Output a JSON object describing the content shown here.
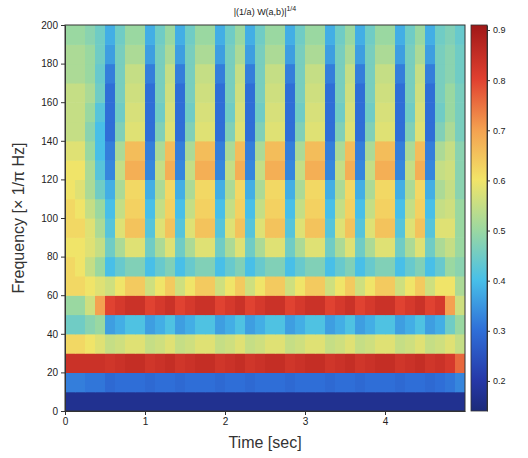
{
  "chart_data": {
    "type": "heatmap",
    "title": {
      "text": "|(1/a) W(a,b)|",
      "superscript": "1/4"
    },
    "x_label": "Time [sec]",
    "y_label": "Frequency [× 1/π Hz]",
    "xlim": [
      0,
      5
    ],
    "ylim": [
      0,
      200
    ],
    "xticks": [
      0,
      1,
      2,
      3,
      4
    ],
    "yticks": [
      0,
      20,
      40,
      60,
      80,
      100,
      120,
      140,
      160,
      180,
      200
    ],
    "x": [
      0,
      0.125,
      0.25,
      0.375,
      0.5,
      0.625,
      0.75,
      0.875,
      1,
      1.125,
      1.25,
      1.375,
      1.5,
      1.625,
      1.75,
      1.875,
      2,
      2.125,
      2.25,
      2.375,
      2.5,
      2.625,
      2.75,
      2.875,
      3,
      3.125,
      3.25,
      3.375,
      3.5,
      3.625,
      3.75,
      3.875,
      4,
      4.125,
      4.25,
      4.375,
      4.5,
      4.625,
      4.75,
      4.875
    ],
    "y": [
      0,
      10,
      20,
      30,
      40,
      50,
      60,
      70,
      80,
      90,
      100,
      110,
      120,
      130,
      140,
      150,
      160,
      170,
      180,
      190
    ],
    "cells": [
      [
        0.17,
        0.17,
        0.17,
        0.17,
        0.17,
        0.17,
        0.17,
        0.17,
        0.17,
        0.17,
        0.17,
        0.17,
        0.17,
        0.17,
        0.17,
        0.17,
        0.17,
        0.17,
        0.17,
        0.17,
        0.17,
        0.17,
        0.17,
        0.17,
        0.17,
        0.17,
        0.17,
        0.17,
        0.17,
        0.17,
        0.17,
        0.17,
        0.17,
        0.17,
        0.17,
        0.17,
        0.17,
        0.17,
        0.17,
        0.17
      ],
      [
        0.32,
        0.32,
        0.31,
        0.31,
        0.29,
        0.3,
        0.3,
        0.3,
        0.29,
        0.3,
        0.3,
        0.29,
        0.3,
        0.3,
        0.3,
        0.29,
        0.3,
        0.3,
        0.29,
        0.3,
        0.3,
        0.3,
        0.29,
        0.3,
        0.3,
        0.3,
        0.29,
        0.3,
        0.3,
        0.29,
        0.3,
        0.3,
        0.3,
        0.29,
        0.3,
        0.3,
        0.29,
        0.3,
        0.31,
        0.33
      ],
      [
        0.84,
        0.84,
        0.84,
        0.84,
        0.83,
        0.84,
        0.85,
        0.85,
        0.83,
        0.84,
        0.85,
        0.83,
        0.84,
        0.85,
        0.85,
        0.83,
        0.84,
        0.85,
        0.83,
        0.84,
        0.85,
        0.85,
        0.83,
        0.84,
        0.85,
        0.85,
        0.83,
        0.84,
        0.85,
        0.83,
        0.84,
        0.85,
        0.85,
        0.83,
        0.84,
        0.85,
        0.83,
        0.84,
        0.82,
        0.76
      ],
      [
        0.62,
        0.62,
        0.6,
        0.58,
        0.55,
        0.56,
        0.58,
        0.58,
        0.55,
        0.56,
        0.58,
        0.55,
        0.56,
        0.58,
        0.58,
        0.55,
        0.56,
        0.58,
        0.55,
        0.56,
        0.58,
        0.58,
        0.55,
        0.56,
        0.58,
        0.58,
        0.55,
        0.56,
        0.58,
        0.55,
        0.56,
        0.58,
        0.58,
        0.55,
        0.56,
        0.58,
        0.55,
        0.56,
        0.58,
        0.55
      ],
      [
        0.45,
        0.45,
        0.48,
        0.5,
        0.36,
        0.38,
        0.41,
        0.41,
        0.36,
        0.38,
        0.41,
        0.36,
        0.38,
        0.41,
        0.41,
        0.36,
        0.38,
        0.41,
        0.36,
        0.38,
        0.41,
        0.41,
        0.36,
        0.38,
        0.41,
        0.41,
        0.36,
        0.38,
        0.41,
        0.36,
        0.38,
        0.41,
        0.41,
        0.36,
        0.38,
        0.41,
        0.36,
        0.38,
        0.45,
        0.5
      ],
      [
        0.5,
        0.5,
        0.56,
        0.7,
        0.8,
        0.82,
        0.84,
        0.84,
        0.8,
        0.82,
        0.84,
        0.8,
        0.82,
        0.84,
        0.84,
        0.8,
        0.82,
        0.84,
        0.8,
        0.82,
        0.84,
        0.84,
        0.8,
        0.82,
        0.84,
        0.84,
        0.8,
        0.82,
        0.84,
        0.8,
        0.82,
        0.84,
        0.84,
        0.8,
        0.82,
        0.84,
        0.8,
        0.82,
        0.7,
        0.56
      ],
      [
        0.62,
        0.62,
        0.6,
        0.58,
        0.56,
        0.6,
        0.64,
        0.64,
        0.56,
        0.6,
        0.64,
        0.56,
        0.6,
        0.64,
        0.64,
        0.56,
        0.6,
        0.64,
        0.56,
        0.6,
        0.64,
        0.64,
        0.56,
        0.6,
        0.64,
        0.64,
        0.56,
        0.6,
        0.64,
        0.56,
        0.6,
        0.64,
        0.64,
        0.56,
        0.6,
        0.64,
        0.56,
        0.6,
        0.6,
        0.52
      ],
      [
        0.62,
        0.6,
        0.55,
        0.5,
        0.4,
        0.44,
        0.47,
        0.47,
        0.4,
        0.44,
        0.47,
        0.4,
        0.44,
        0.47,
        0.47,
        0.4,
        0.44,
        0.47,
        0.4,
        0.44,
        0.47,
        0.47,
        0.4,
        0.44,
        0.47,
        0.47,
        0.4,
        0.44,
        0.47,
        0.4,
        0.44,
        0.47,
        0.47,
        0.4,
        0.44,
        0.47,
        0.4,
        0.44,
        0.5,
        0.48
      ],
      [
        0.6,
        0.6,
        0.58,
        0.55,
        0.45,
        0.52,
        0.58,
        0.58,
        0.45,
        0.52,
        0.58,
        0.45,
        0.52,
        0.58,
        0.58,
        0.45,
        0.52,
        0.58,
        0.45,
        0.52,
        0.58,
        0.58,
        0.45,
        0.52,
        0.58,
        0.58,
        0.45,
        0.52,
        0.58,
        0.45,
        0.52,
        0.58,
        0.58,
        0.45,
        0.52,
        0.58,
        0.45,
        0.52,
        0.55,
        0.5
      ],
      [
        0.62,
        0.62,
        0.58,
        0.52,
        0.42,
        0.58,
        0.65,
        0.65,
        0.42,
        0.58,
        0.65,
        0.42,
        0.58,
        0.65,
        0.65,
        0.42,
        0.58,
        0.65,
        0.42,
        0.58,
        0.65,
        0.65,
        0.42,
        0.58,
        0.65,
        0.65,
        0.42,
        0.58,
        0.65,
        0.42,
        0.58,
        0.65,
        0.65,
        0.42,
        0.58,
        0.65,
        0.42,
        0.58,
        0.58,
        0.5
      ],
      [
        0.62,
        0.6,
        0.55,
        0.5,
        0.4,
        0.55,
        0.63,
        0.63,
        0.4,
        0.55,
        0.63,
        0.4,
        0.55,
        0.63,
        0.63,
        0.4,
        0.55,
        0.63,
        0.4,
        0.55,
        0.63,
        0.63,
        0.4,
        0.55,
        0.63,
        0.63,
        0.4,
        0.55,
        0.63,
        0.4,
        0.55,
        0.63,
        0.63,
        0.4,
        0.55,
        0.63,
        0.4,
        0.55,
        0.56,
        0.5
      ],
      [
        0.6,
        0.58,
        0.52,
        0.45,
        0.38,
        0.52,
        0.62,
        0.62,
        0.38,
        0.52,
        0.62,
        0.38,
        0.52,
        0.62,
        0.62,
        0.38,
        0.52,
        0.62,
        0.38,
        0.52,
        0.62,
        0.62,
        0.38,
        0.52,
        0.62,
        0.62,
        0.38,
        0.52,
        0.62,
        0.38,
        0.52,
        0.62,
        0.62,
        0.38,
        0.52,
        0.62,
        0.38,
        0.52,
        0.55,
        0.48
      ],
      [
        0.6,
        0.6,
        0.52,
        0.42,
        0.33,
        0.55,
        0.68,
        0.68,
        0.33,
        0.55,
        0.68,
        0.33,
        0.55,
        0.68,
        0.68,
        0.33,
        0.55,
        0.68,
        0.33,
        0.55,
        0.68,
        0.68,
        0.33,
        0.55,
        0.68,
        0.68,
        0.33,
        0.55,
        0.68,
        0.33,
        0.55,
        0.68,
        0.68,
        0.33,
        0.55,
        0.68,
        0.33,
        0.55,
        0.56,
        0.48
      ],
      [
        0.58,
        0.58,
        0.5,
        0.4,
        0.32,
        0.52,
        0.66,
        0.66,
        0.32,
        0.52,
        0.66,
        0.32,
        0.52,
        0.66,
        0.66,
        0.32,
        0.52,
        0.66,
        0.32,
        0.52,
        0.66,
        0.66,
        0.32,
        0.52,
        0.66,
        0.66,
        0.32,
        0.52,
        0.66,
        0.32,
        0.52,
        0.66,
        0.66,
        0.32,
        0.52,
        0.66,
        0.32,
        0.52,
        0.55,
        0.48
      ],
      [
        0.55,
        0.55,
        0.48,
        0.4,
        0.3,
        0.47,
        0.58,
        0.58,
        0.3,
        0.47,
        0.58,
        0.3,
        0.47,
        0.58,
        0.58,
        0.3,
        0.47,
        0.58,
        0.3,
        0.47,
        0.58,
        0.58,
        0.3,
        0.47,
        0.58,
        0.58,
        0.3,
        0.47,
        0.58,
        0.3,
        0.47,
        0.58,
        0.58,
        0.3,
        0.47,
        0.58,
        0.3,
        0.47,
        0.52,
        0.46
      ],
      [
        0.55,
        0.55,
        0.5,
        0.42,
        0.3,
        0.45,
        0.57,
        0.57,
        0.3,
        0.45,
        0.57,
        0.3,
        0.45,
        0.57,
        0.57,
        0.3,
        0.45,
        0.57,
        0.3,
        0.45,
        0.57,
        0.57,
        0.3,
        0.45,
        0.57,
        0.57,
        0.3,
        0.45,
        0.57,
        0.3,
        0.45,
        0.57,
        0.57,
        0.3,
        0.45,
        0.57,
        0.3,
        0.45,
        0.5,
        0.46
      ],
      [
        0.55,
        0.55,
        0.52,
        0.45,
        0.3,
        0.46,
        0.56,
        0.56,
        0.3,
        0.46,
        0.56,
        0.3,
        0.46,
        0.56,
        0.56,
        0.3,
        0.46,
        0.56,
        0.3,
        0.46,
        0.56,
        0.56,
        0.3,
        0.46,
        0.56,
        0.56,
        0.3,
        0.46,
        0.56,
        0.3,
        0.46,
        0.56,
        0.56,
        0.3,
        0.46,
        0.56,
        0.3,
        0.46,
        0.5,
        0.46
      ],
      [
        0.52,
        0.52,
        0.5,
        0.44,
        0.32,
        0.46,
        0.55,
        0.55,
        0.32,
        0.46,
        0.55,
        0.32,
        0.46,
        0.55,
        0.55,
        0.32,
        0.46,
        0.55,
        0.32,
        0.46,
        0.55,
        0.55,
        0.32,
        0.46,
        0.55,
        0.55,
        0.32,
        0.46,
        0.55,
        0.32,
        0.46,
        0.55,
        0.55,
        0.32,
        0.46,
        0.55,
        0.32,
        0.46,
        0.48,
        0.45
      ],
      [
        0.52,
        0.52,
        0.5,
        0.45,
        0.36,
        0.46,
        0.52,
        0.52,
        0.36,
        0.46,
        0.52,
        0.36,
        0.46,
        0.52,
        0.52,
        0.36,
        0.46,
        0.52,
        0.36,
        0.46,
        0.52,
        0.52,
        0.36,
        0.46,
        0.52,
        0.52,
        0.36,
        0.46,
        0.52,
        0.36,
        0.46,
        0.52,
        0.52,
        0.36,
        0.46,
        0.52,
        0.36,
        0.46,
        0.48,
        0.45
      ],
      [
        0.5,
        0.5,
        0.48,
        0.45,
        0.38,
        0.45,
        0.5,
        0.5,
        0.38,
        0.45,
        0.5,
        0.38,
        0.45,
        0.5,
        0.5,
        0.38,
        0.45,
        0.5,
        0.38,
        0.45,
        0.5,
        0.5,
        0.38,
        0.45,
        0.5,
        0.5,
        0.38,
        0.45,
        0.5,
        0.38,
        0.45,
        0.5,
        0.5,
        0.38,
        0.45,
        0.5,
        0.38,
        0.45,
        0.47,
        0.44
      ]
    ],
    "colorbar": {
      "range": [
        0.14,
        0.91
      ],
      "ticks": [
        0.2,
        0.3,
        0.4,
        0.5,
        0.6,
        0.7,
        0.8,
        0.9
      ]
    }
  }
}
